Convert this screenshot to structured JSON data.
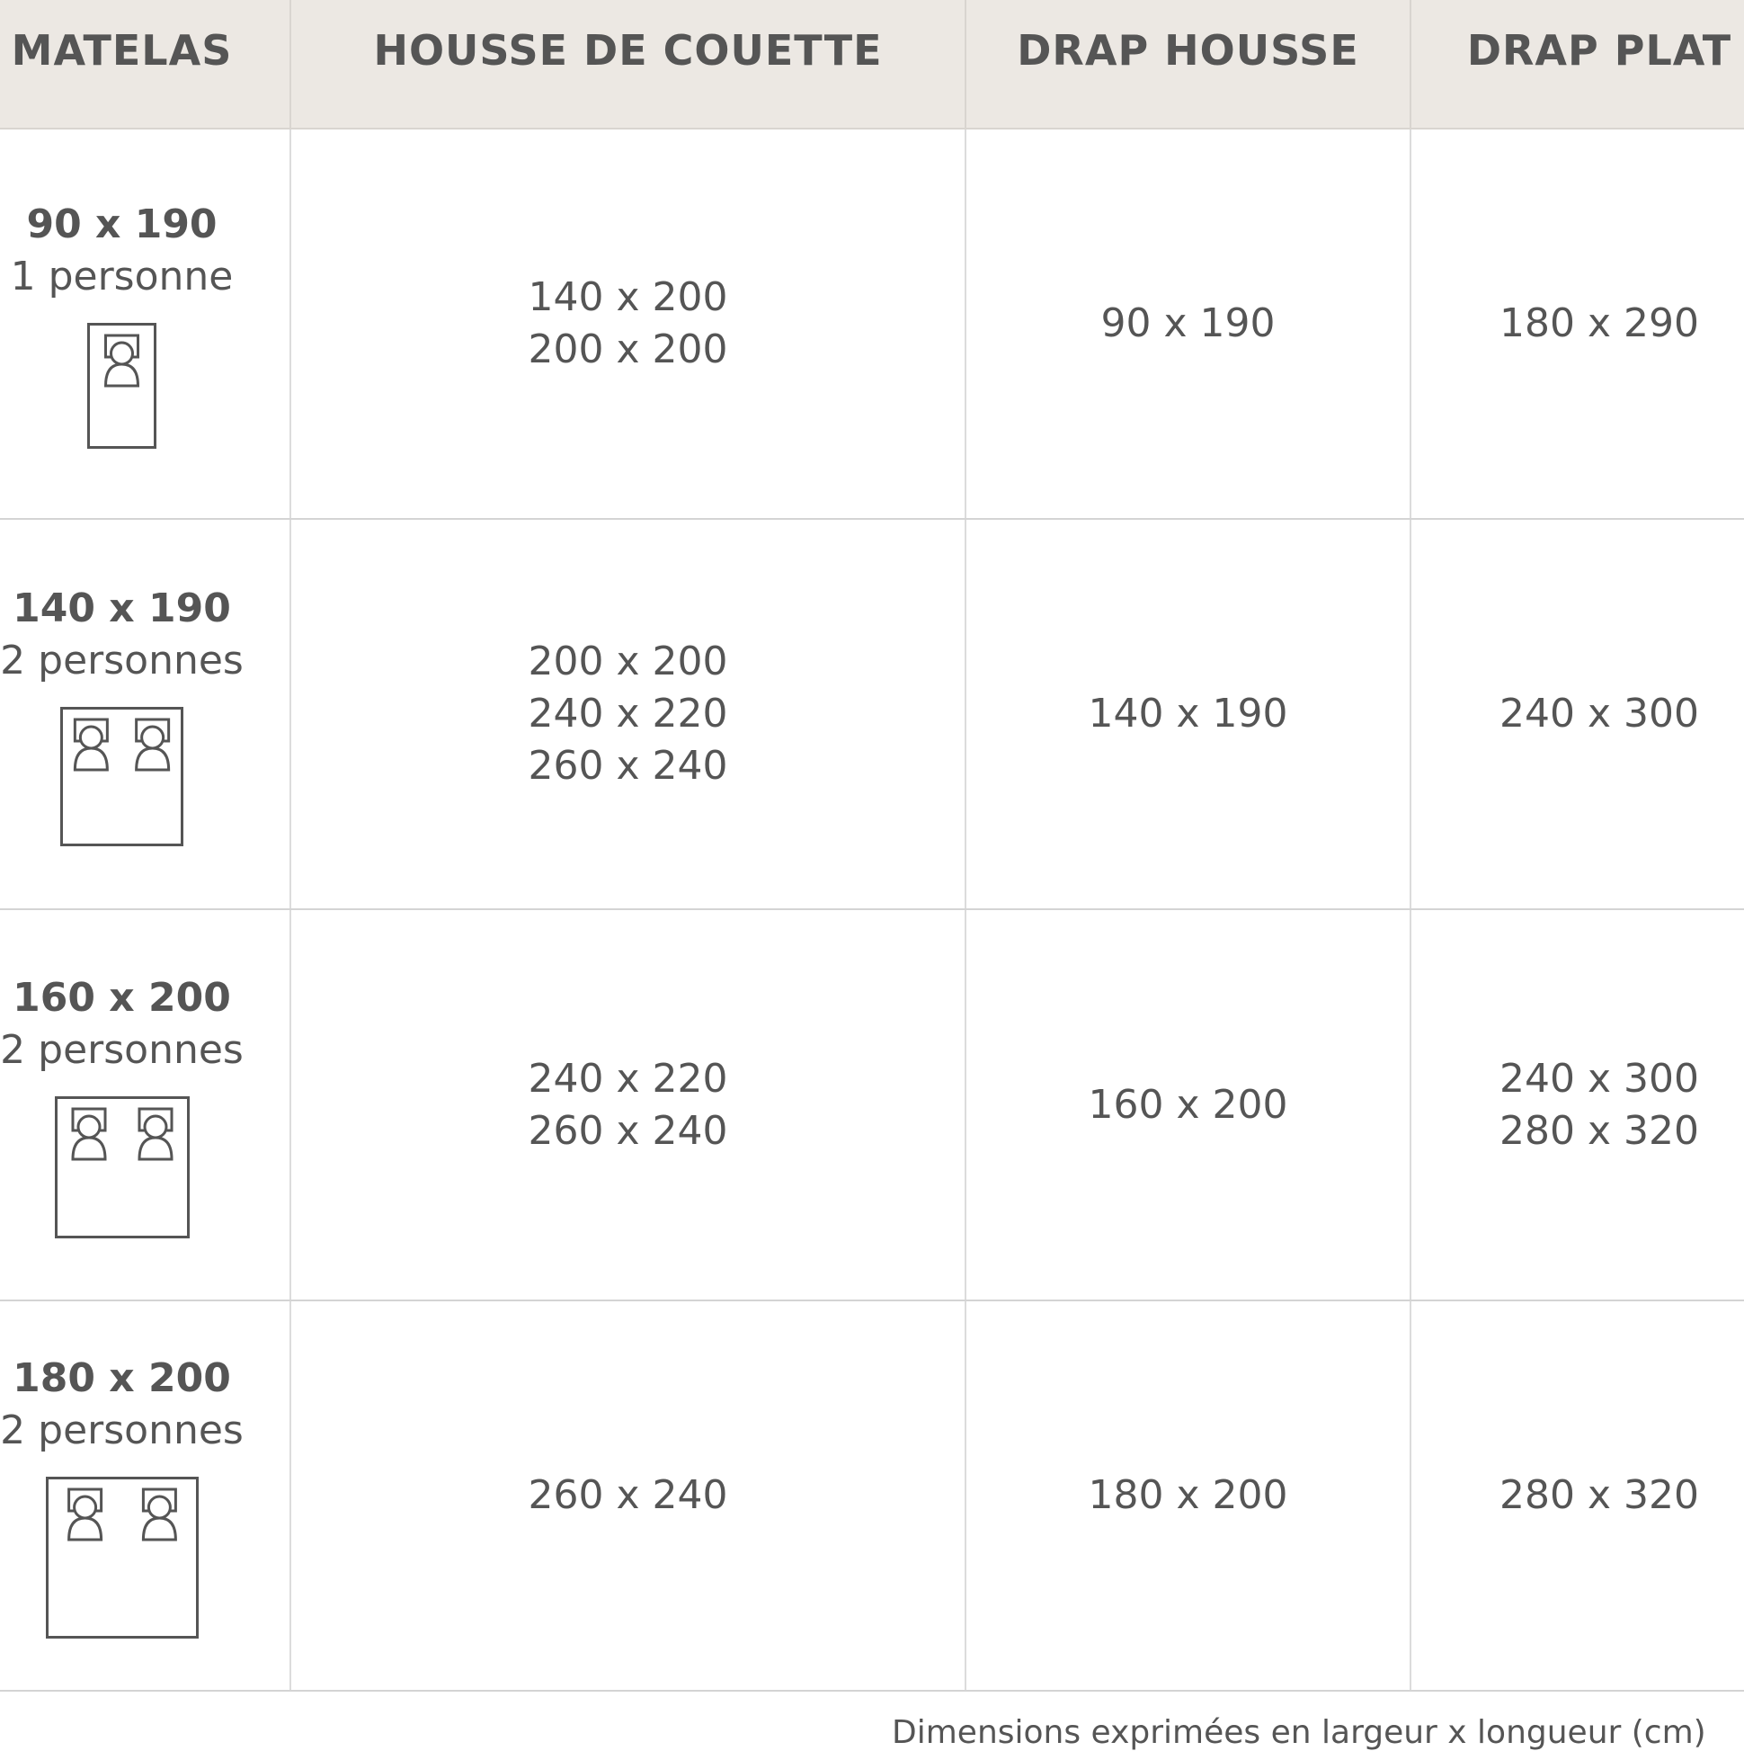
{
  "headers": [
    "MATELAS",
    "HOUSSE DE COUETTE",
    "DRAP HOUSSE",
    "DRAP PLAT"
  ],
  "rows": [
    {
      "size": "90 x 190",
      "people": "1 personne",
      "people_count": 1,
      "housse": [
        "140 x 200",
        "200 x 200"
      ],
      "drap_housse": [
        "90 x 190"
      ],
      "drap_plat": [
        "180 x 290"
      ]
    },
    {
      "size": "140 x 190",
      "people": "2 personnes",
      "people_count": 2,
      "housse": [
        "200 x 200",
        "240 x 220",
        "260 x 240"
      ],
      "drap_housse": [
        "140 x 190"
      ],
      "drap_plat": [
        "240 x 300"
      ]
    },
    {
      "size": "160 x 200",
      "people": "2 personnes",
      "people_count": 2,
      "housse": [
        "240 x 220",
        "260 x 240"
      ],
      "drap_housse": [
        "160 x 200"
      ],
      "drap_plat": [
        "240 x 300",
        "280 x 320"
      ]
    },
    {
      "size": "180 x 200",
      "people": "2 personnes",
      "people_count": 2,
      "housse": [
        "260 x 240"
      ],
      "drap_housse": [
        "180 x 200"
      ],
      "drap_plat": [
        "280 x 320"
      ]
    }
  ],
  "footer": "Dimensions exprimées en largeur x longueur (cm)",
  "colors": {
    "header_bg": "#ece8e3",
    "text": "#555555",
    "border": "#d4d4d4"
  }
}
